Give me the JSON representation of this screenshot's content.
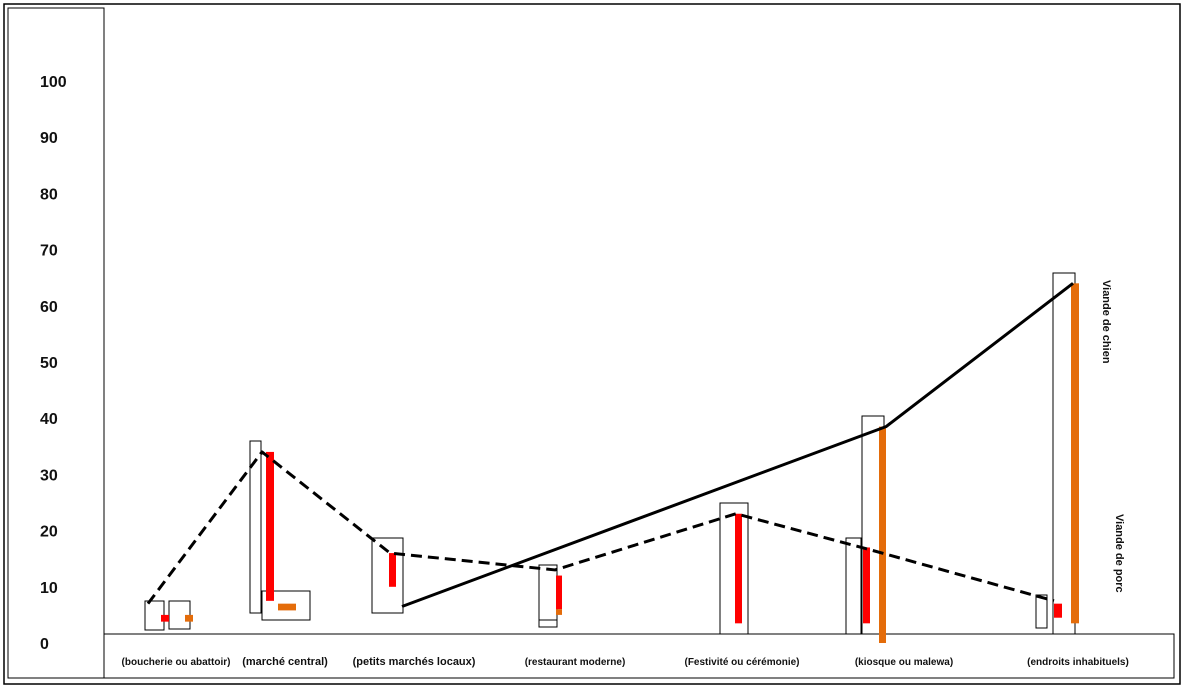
{
  "chart_data": {
    "type": "line",
    "title": "",
    "xlabel": "",
    "ylabel": "",
    "ylim": [
      0,
      100
    ],
    "yticks": [
      "0",
      "10",
      "20",
      "30",
      "40",
      "50",
      "60",
      "70",
      "80",
      "90",
      "100"
    ],
    "grid": false,
    "categories": [
      "(boucherie ou abattoir)",
      "(marché central)",
      "(petits marchés locaux)",
      "(restaurant moderne)",
      "(Festivité ou cérémonie)",
      "(kiosque ou malewa)",
      "(endroits inhabituels)"
    ],
    "series": [
      {
        "name": "Viande de porc",
        "line_style": "dashed",
        "bar_color": "#ff0000",
        "values": [
          7,
          34,
          16,
          13,
          23,
          16.5,
          7.5
        ],
        "bar_values": [
          5,
          34,
          16,
          12,
          23,
          17,
          7
        ]
      },
      {
        "name": "Viande de chien",
        "line_style": "solid",
        "bar_color": "#e46c0a",
        "values": [
          null,
          null,
          6.5,
          null,
          null,
          38.5,
          64
        ],
        "bar_values": [
          5,
          7,
          null,
          6,
          null,
          38.5,
          64
        ]
      }
    ]
  }
}
